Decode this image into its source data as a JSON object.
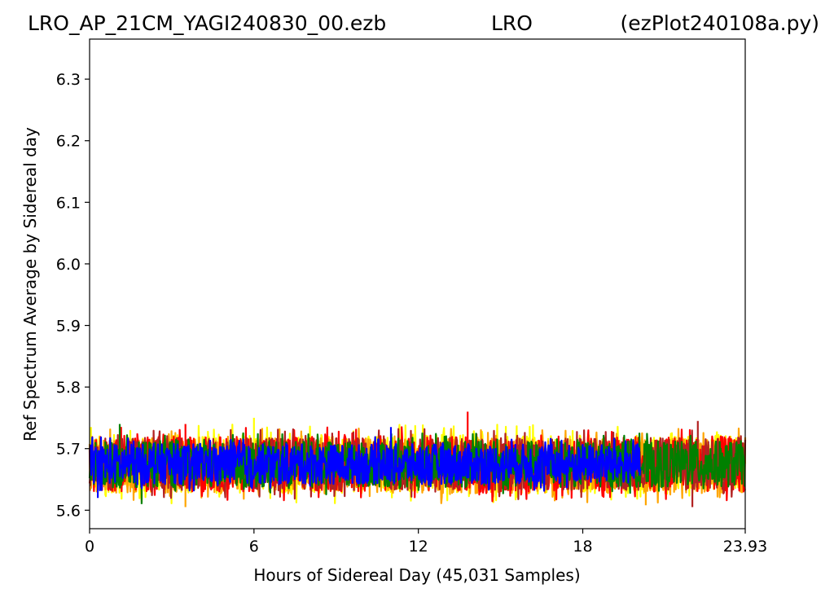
{
  "header": {
    "left": "LRO_AP_21CM_YAGI240830_00.ezb",
    "center": "LRO",
    "right": "(ezPlot240108a.py)"
  },
  "chart_data": {
    "type": "line",
    "xlabel": "Hours of Sidereal Day  (45,031 Samples)",
    "ylabel": "Ref Spectrum Average by Sidereal day",
    "xlim": [
      0,
      23.93
    ],
    "ylim": [
      5.57,
      6.365
    ],
    "x_ticks": [
      "0",
      "6",
      "12",
      "18",
      "23.93"
    ],
    "x_tick_values": [
      0,
      6,
      12,
      18,
      23.93
    ],
    "y_ticks": [
      "5.6",
      "5.7",
      "5.8",
      "5.9",
      "6.0",
      "6.1",
      "6.2",
      "6.3"
    ],
    "y_tick_values": [
      5.6,
      5.7,
      5.8,
      5.9,
      6.0,
      6.1,
      6.2,
      6.3
    ],
    "grid": false,
    "legend": "none",
    "series": [
      {
        "color": "#ffff00",
        "x_range": [
          0,
          23.93
        ],
        "mean": 5.675,
        "band": [
          5.63,
          5.725
        ],
        "peaks": [
          [
            6.0,
            5.75
          ],
          [
            0.05,
            5.735
          ]
        ]
      },
      {
        "color": "#ffa500",
        "x_range": [
          0,
          23.93
        ],
        "mean": 5.672,
        "band": [
          5.63,
          5.72
        ],
        "peaks": [
          [
            3.5,
            5.605
          ],
          [
            20.3,
            5.608
          ]
        ]
      },
      {
        "color": "#ff0000",
        "x_range": [
          0,
          23.93
        ],
        "mean": 5.675,
        "band": [
          5.632,
          5.722
        ],
        "peaks": [
          [
            13.8,
            5.76
          ],
          [
            3.5,
            5.74
          ]
        ]
      },
      {
        "color": "#b22222",
        "x_range": [
          0,
          23.93
        ],
        "mean": 5.675,
        "band": [
          5.635,
          5.72
        ],
        "peaks": [
          [
            22.2,
            5.745
          ],
          [
            22.0,
            5.605
          ]
        ]
      },
      {
        "color": "#008000",
        "x_range": [
          0,
          23.93
        ],
        "mean": 5.675,
        "band": [
          5.64,
          5.715
        ],
        "peaks": [
          [
            1.1,
            5.74
          ],
          [
            1.9,
            5.61
          ]
        ]
      },
      {
        "color": "#0000ff",
        "x_range": [
          0,
          20.1
        ],
        "mean": 5.675,
        "band": [
          5.645,
          5.71
        ],
        "peaks": [
          [
            11.0,
            5.735
          ],
          [
            0.3,
            5.62
          ]
        ]
      }
    ]
  }
}
